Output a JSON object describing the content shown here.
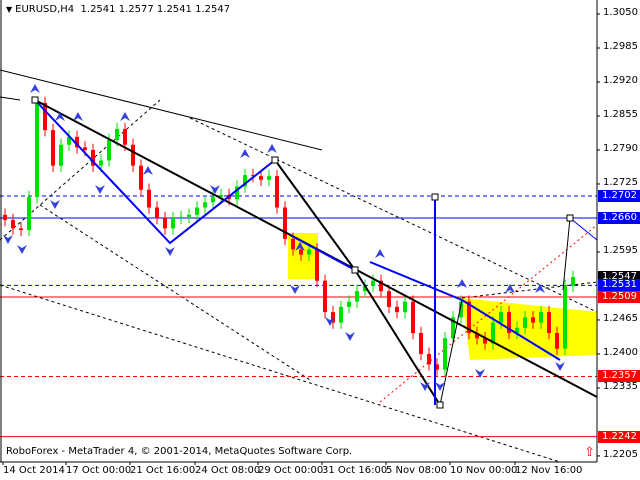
{
  "header": {
    "symbol": "EURUSD,H4",
    "open": "1.2541",
    "high": "1.2577",
    "low": "1.2541",
    "close": "1.2547"
  },
  "footer": {
    "copyright": "RoboForex - MetaTrader 4, © 2001-2014, MetaQuotes Software Corp."
  },
  "colors": {
    "bull": "#00e000",
    "bear": "#ff0000",
    "trend_blue": "#0000ff",
    "trend_black": "#000000",
    "zone": "#ffff00"
  },
  "chart_data": {
    "type": "candlestick",
    "symbol": "EURUSD",
    "timeframe": "H4",
    "x_ticks": [
      "14 Oct 2014",
      "17 Oct 00:00",
      "21 Oct 16:00",
      "24 Oct 08:00",
      "29 Oct 00:00",
      "31 Oct 16:00",
      "5 Nov 08:00",
      "10 Nov 00:00",
      "12 Nov 16:00"
    ],
    "y_ticks": [
      "1.3050",
      "1.2985",
      "1.2920",
      "1.2855",
      "1.2790",
      "1.2725",
      "1.2595",
      "1.2465",
      "1.2400",
      "1.2335",
      "1.2205"
    ],
    "ylim": [
      1.2195,
      1.3077
    ],
    "closes": [
      1.2656,
      1.264,
      1.2637,
      1.27,
      1.288,
      1.2828,
      1.276,
      1.28,
      1.2815,
      1.2795,
      1.279,
      1.276,
      1.277,
      1.2809,
      1.283,
      1.28,
      1.276,
      1.2714,
      1.268,
      1.266,
      1.264,
      1.266,
      1.2662,
      1.2666,
      1.268,
      1.269,
      1.27,
      1.2704,
      1.2696,
      1.272,
      1.2742,
      1.274,
      1.2733,
      1.274,
      1.268,
      1.262,
      1.26,
      1.259,
      1.26,
      1.254,
      1.248,
      1.246,
      1.249,
      1.25,
      1.252,
      1.253,
      1.254,
      1.252,
      1.249,
      1.248,
      1.25,
      1.244,
      1.24,
      1.238,
      1.237,
      1.243,
      1.247,
      1.25,
      1.244,
      1.243,
      1.242,
      1.246,
      1.248,
      1.244,
      1.245,
      1.247,
      1.246,
      1.248,
      1.244,
      1.241,
      1.253,
      1.2547
    ],
    "levels": [
      {
        "price": "1.2702",
        "color": "#0000ff",
        "style": "dashed"
      },
      {
        "price": "1.2660",
        "color": "#0000ff",
        "style": "solid"
      },
      {
        "price": "1.2547",
        "color": "#000000",
        "style": "current"
      },
      {
        "price": "1.2531",
        "color": "#0000ff",
        "style": "dashed"
      },
      {
        "price": "1.2509",
        "color": "#ff0000",
        "style": "solid"
      },
      {
        "price": "1.2357",
        "color": "#ff0000",
        "style": "dashed"
      },
      {
        "price": "1.2242",
        "color": "#ff0000",
        "style": "solid"
      }
    ]
  }
}
